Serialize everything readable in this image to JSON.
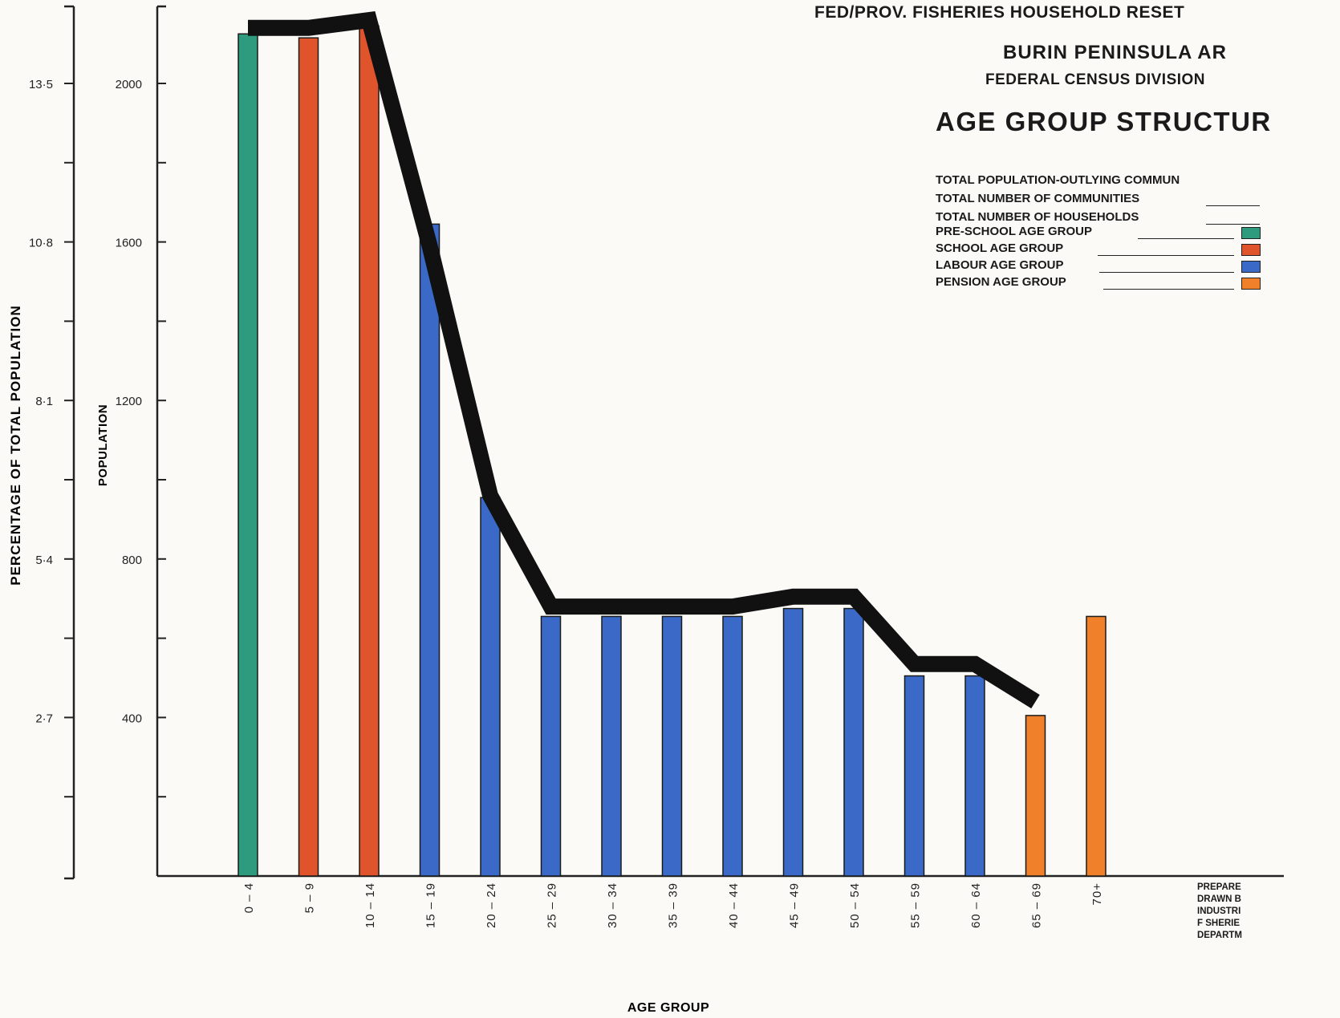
{
  "header": {
    "department_line": "FED/PROV. FISHERIES HOUSEHOLD RESET",
    "area": "BURIN PENINSULA AR",
    "census_division": "FEDERAL CENSUS DIVISION",
    "title": "AGE GROUP STRUCTUR"
  },
  "stats": [
    {
      "label": "TOTAL POPULATION-OUTLYING COMMUN"
    },
    {
      "label": "TOTAL NUMBER OF COMMUNITIES"
    },
    {
      "label": "TOTAL NUMBER OF HOUSEHOLDS"
    }
  ],
  "legend": [
    {
      "label": "PRE-SCHOOL AGE GROUP",
      "color": "#2e9a7e"
    },
    {
      "label": "SCHOOL AGE GROUP",
      "color": "#e0542c"
    },
    {
      "label": "LABOUR AGE GROUP",
      "color": "#3a69c8"
    },
    {
      "label": "PENSION AGE GROUP",
      "color": "#f0812a"
    }
  ],
  "footer_notes": [
    "PREPARE",
    "DRAWN B",
    "INDUSTRI",
    "F SHERIE",
    "DEPARTM"
  ],
  "chart_data": {
    "type": "bar",
    "title": "AGE GROUP STRUCTUR",
    "xlabel": "AGE GROUP",
    "ylabel": "POPULATION",
    "y2label": "PERCENTAGE OF TOTAL POPULATION",
    "ylim": [
      0,
      2200
    ],
    "y_ticks": [
      400,
      800,
      1200,
      1600,
      2000
    ],
    "y2_ticks": [
      "2·7",
      "5·4",
      "8·1",
      "10·8",
      "13·5"
    ],
    "categories": [
      "0-4",
      "5-9",
      "10-14",
      "15-19",
      "20-24",
      "25-29",
      "30-34",
      "35-39",
      "40-44",
      "45-49",
      "50-54",
      "55-59",
      "60-64",
      "65-69",
      "70+"
    ],
    "values": [
      2125,
      2115,
      2145,
      1645,
      955,
      655,
      655,
      655,
      655,
      675,
      675,
      505,
      505,
      405,
      655
    ],
    "groups": [
      "pre-school",
      "school",
      "school",
      "labour",
      "labour",
      "labour",
      "labour",
      "labour",
      "labour",
      "labour",
      "labour",
      "labour",
      "labour",
      "pension",
      "pension"
    ],
    "group_colors": {
      "pre-school": "#2e9a7e",
      "school": "#e0542c",
      "labour": "#3a69c8",
      "pension": "#f0812a"
    },
    "outline_values": [
      2140,
      2140,
      2160,
      1590,
      960,
      680,
      680,
      680,
      680,
      705,
      705,
      535,
      535,
      440
    ],
    "grid": false,
    "legend_position": "top-right"
  }
}
